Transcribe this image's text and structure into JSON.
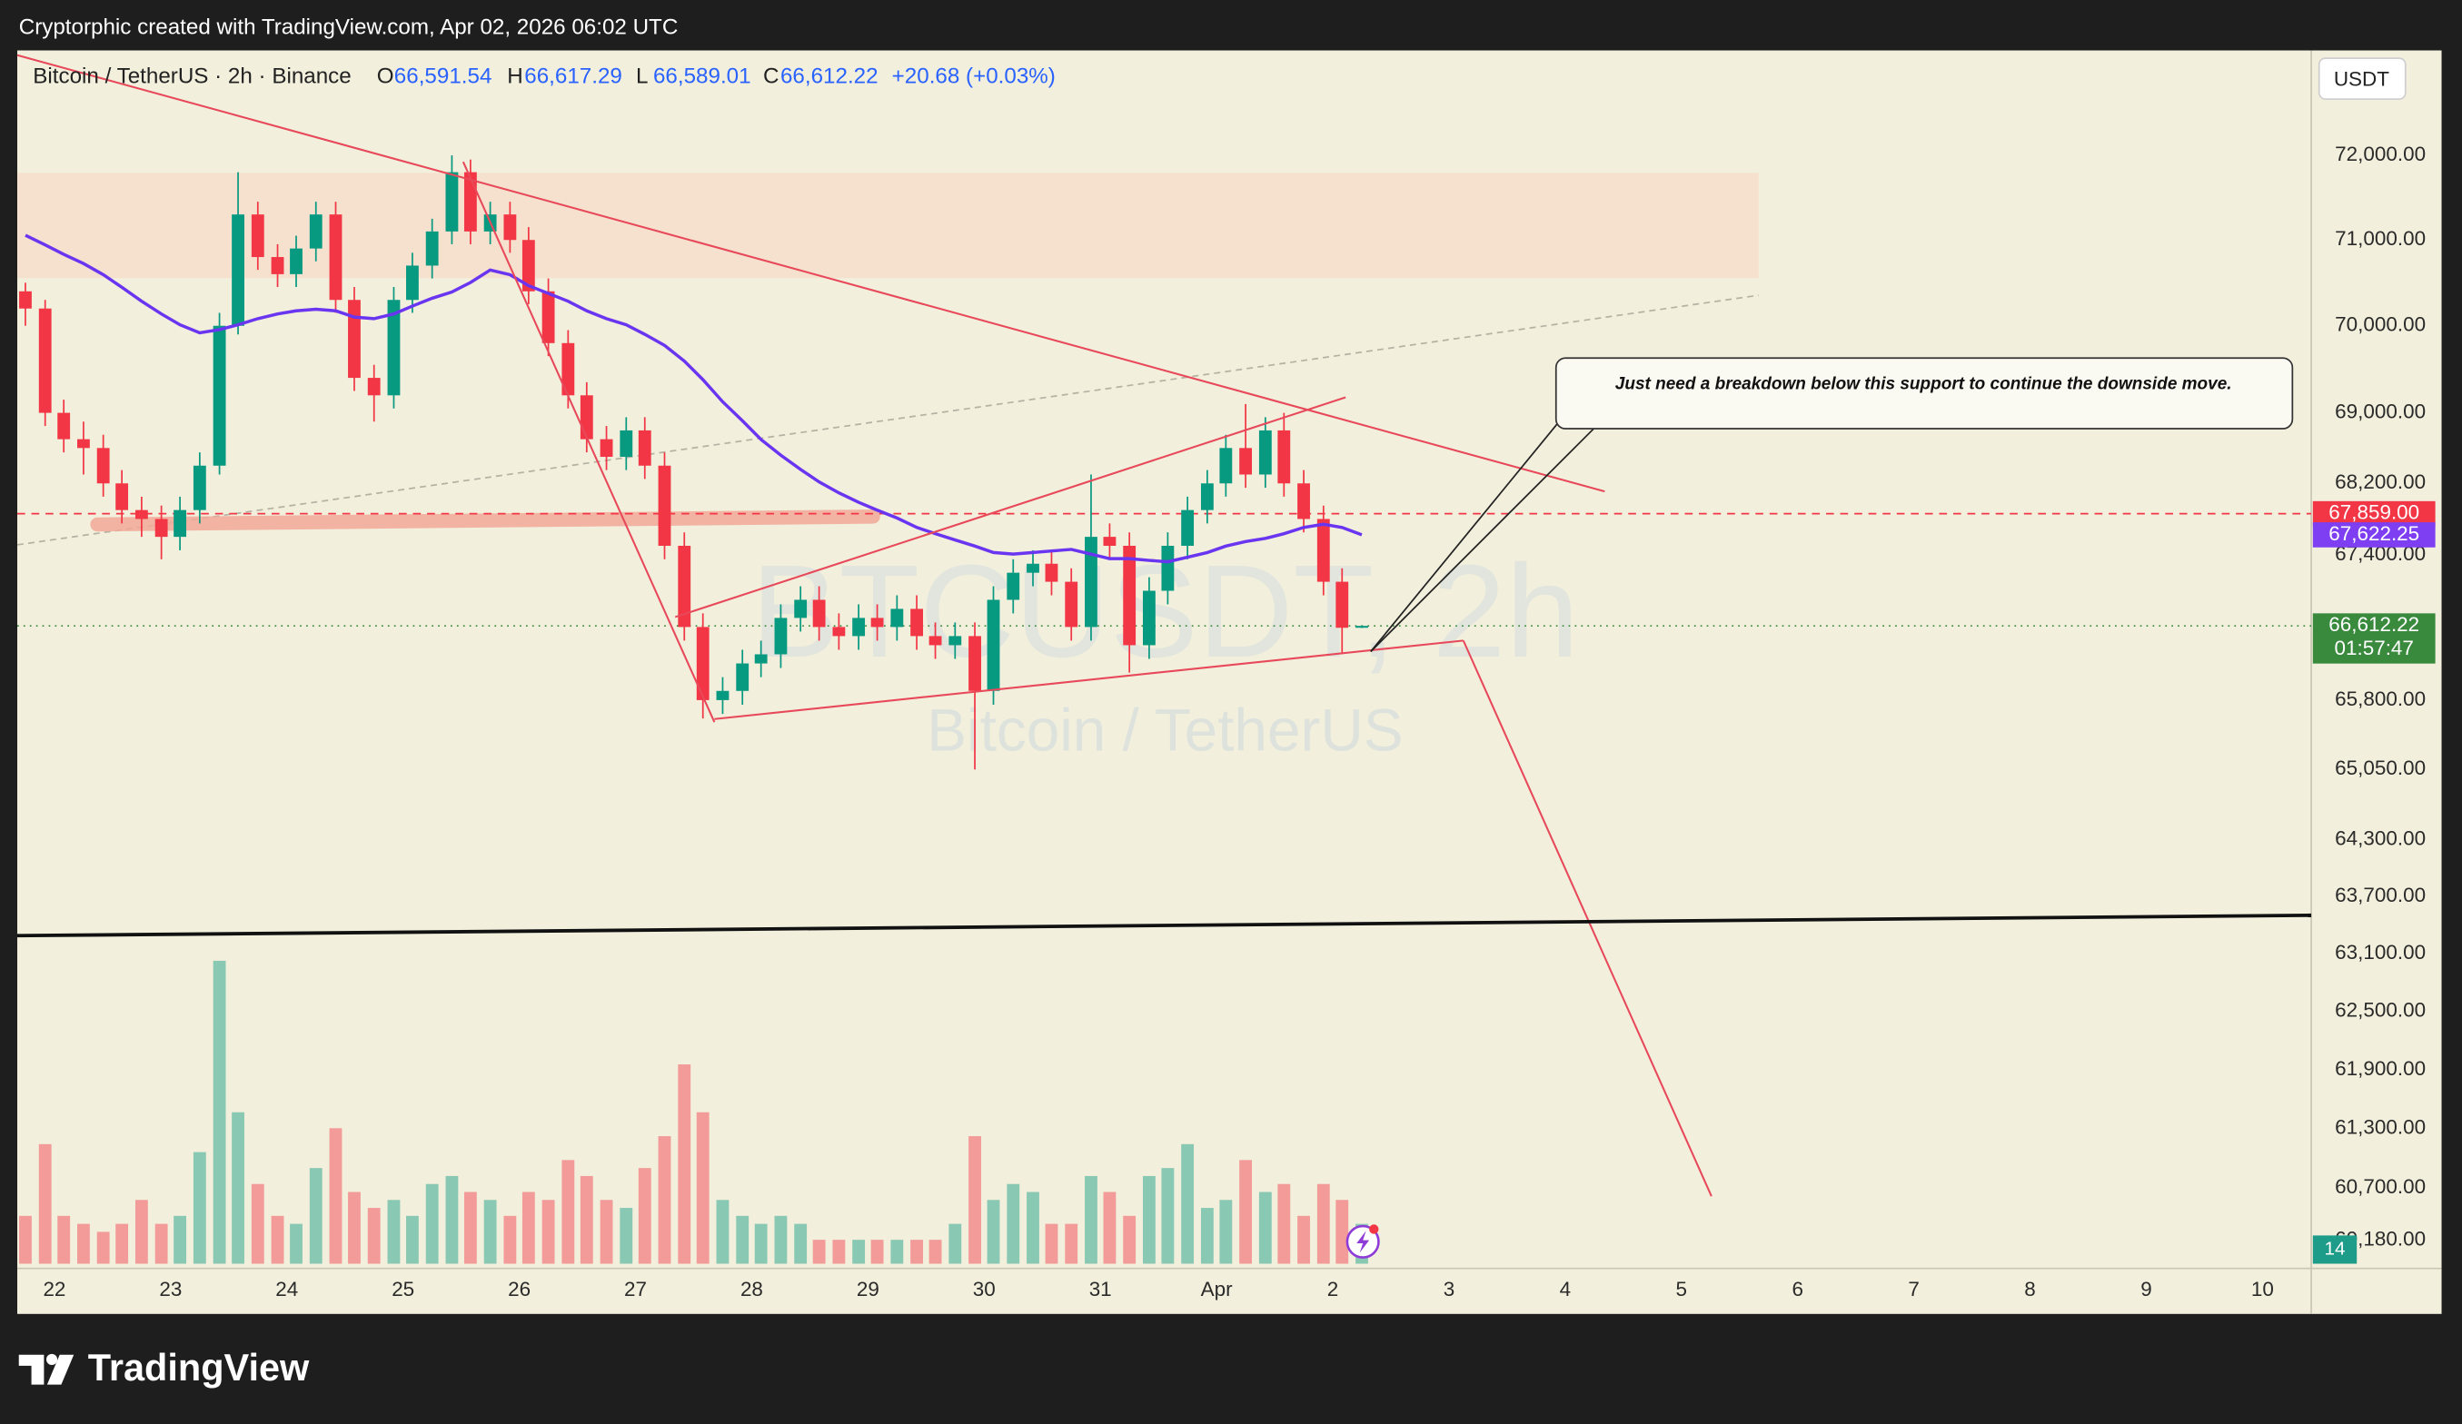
{
  "top_bar": "Cryptorphic created with TradingView.com, Apr 02, 2026 06:02 UTC",
  "footer_logo": "TradingView",
  "chart_data": {
    "type": "candlestick",
    "symbol": "Bitcoin / TetherUS · 2h · Binance",
    "ohlc_legend": [
      {
        "key": "O",
        "text": "66,591.54"
      },
      {
        "key": "H",
        "text": "66,617.29"
      },
      {
        "key": "L",
        "text": "66,589.01"
      },
      {
        "key": "C",
        "text": "66,612.22"
      }
    ],
    "change": "+20.68 (+0.03%)",
    "watermark": "BTCUSDT, 2h",
    "watermark_subtitle": "Bitcoin / TetherUS",
    "currency": "USDT",
    "countdown": "01:57:47",
    "indicator_badge": "14",
    "annotation": "Just need a breakdown below this support to continue the downside move.",
    "log_scale": true,
    "grid": false,
    "up_color": "#089981",
    "down_color": "#f23645",
    "ylim": [
      59900,
      73260
    ],
    "yticks": [
      {
        "value": 72000,
        "label": "72,000.00"
      },
      {
        "value": 71000,
        "label": "71,000.00"
      },
      {
        "value": 70000,
        "label": "70,000.00"
      },
      {
        "value": 69000,
        "label": "69,000.00"
      },
      {
        "value": 68200,
        "label": "68,200.00"
      },
      {
        "value": 67400,
        "label": "67,400.00"
      },
      {
        "value": 65800,
        "label": "65,800.00"
      },
      {
        "value": 65050,
        "label": "65,050.00"
      },
      {
        "value": 64300,
        "label": "64,300.00"
      },
      {
        "value": 63700,
        "label": "63,700.00"
      },
      {
        "value": 63100,
        "label": "63,100.00"
      },
      {
        "value": 62500,
        "label": "62,500.00"
      },
      {
        "value": 61900,
        "label": "61,900.00"
      },
      {
        "value": 61300,
        "label": "61,300.00"
      },
      {
        "value": 60700,
        "label": "60,700.00"
      },
      {
        "value": 60180,
        "label": "60,180.00"
      }
    ],
    "xlim": [
      21.68,
      41.42
    ],
    "xticks": [
      22,
      23,
      24,
      25,
      26,
      27,
      28,
      29,
      30,
      31,
      {
        "value": 32,
        "label": "Apr"
      },
      {
        "value": 33,
        "label": "2"
      },
      {
        "value": 34,
        "label": "3"
      },
      {
        "value": 35,
        "label": "4"
      },
      {
        "value": 36,
        "label": "5"
      },
      {
        "value": 37,
        "label": "6"
      },
      {
        "value": 38,
        "label": "7"
      },
      {
        "value": 39,
        "label": "8"
      },
      {
        "value": 40,
        "label": "9"
      },
      {
        "value": 41,
        "label": "10"
      }
    ],
    "price_badges": [
      {
        "value": 67859,
        "label": "67,859.00",
        "color": "#f23645"
      },
      {
        "value": 67622.25,
        "label": "67,622.25",
        "color": "#7e3ff2"
      },
      {
        "value": 66612.22,
        "label": "66,612.22",
        "color": "#3a8a3e"
      }
    ],
    "x": [
      21.75,
      21.92,
      22.08,
      22.25,
      22.42,
      22.58,
      22.75,
      22.92,
      23.08,
      23.25,
      23.42,
      23.58,
      23.75,
      23.92,
      24.08,
      24.25,
      24.42,
      24.58,
      24.75,
      24.92,
      25.08,
      25.25,
      25.42,
      25.58,
      25.75,
      25.92,
      26.08,
      26.25,
      26.42,
      26.58,
      26.75,
      26.92,
      27.08,
      27.25,
      27.42,
      27.58,
      27.75,
      27.92,
      28.08,
      28.25,
      28.42,
      28.58,
      28.75,
      28.92,
      29.08,
      29.25,
      29.42,
      29.58,
      29.75,
      29.92,
      30.08,
      30.25,
      30.42,
      30.58,
      30.75,
      30.92,
      31.08,
      31.25,
      31.42,
      31.58,
      31.75,
      31.92,
      32.08,
      32.25,
      32.42,
      32.58,
      32.75,
      32.92,
      33.08,
      33.25
    ],
    "open": [
      70400,
      70200,
      69000,
      68700,
      68600,
      68200,
      67900,
      67800,
      67600,
      67900,
      68400,
      70000,
      71300,
      70800,
      70600,
      70900,
      71300,
      70300,
      69400,
      69200,
      70300,
      70700,
      71100,
      71800,
      71100,
      71300,
      71000,
      70400,
      69800,
      69200,
      68700,
      68500,
      68800,
      68400,
      67500,
      66600,
      65800,
      65900,
      66200,
      66300,
      66700,
      66900,
      66600,
      66500,
      66700,
      66600,
      66800,
      66500,
      66400,
      66500,
      65900,
      66900,
      67200,
      67300,
      67100,
      66600,
      67600,
      67500,
      66400,
      67000,
      67500,
      67900,
      68200,
      68600,
      68300,
      68800,
      68200,
      67800,
      67100,
      66591.54
    ],
    "high": [
      70500,
      70300,
      69150,
      68900,
      68750,
      68350,
      68050,
      67950,
      68050,
      68550,
      70150,
      71800,
      71450,
      70950,
      71050,
      71450,
      71450,
      70450,
      69550,
      70450,
      70850,
      71250,
      72000,
      71950,
      71450,
      71450,
      71150,
      70550,
      69950,
      69350,
      68850,
      68950,
      68950,
      68550,
      67650,
      66750,
      66050,
      66350,
      66450,
      66850,
      67050,
      67050,
      66750,
      66850,
      66850,
      66950,
      66950,
      66650,
      66650,
      66650,
      67050,
      67350,
      67450,
      67450,
      67250,
      68300,
      67750,
      67650,
      67150,
      67650,
      68050,
      68350,
      68750,
      69100,
      68950,
      69000,
      68350,
      67950,
      67250,
      66617.29
    ],
    "low": [
      70000,
      68850,
      68550,
      68300,
      68050,
      67750,
      67600,
      67350,
      67450,
      67750,
      68300,
      69900,
      70650,
      70450,
      70450,
      70750,
      70150,
      69250,
      68900,
      69050,
      70150,
      70550,
      70950,
      70950,
      70950,
      70850,
      70250,
      69650,
      69050,
      68550,
      68350,
      68350,
      68250,
      67350,
      66450,
      65600,
      65650,
      65750,
      66050,
      66150,
      66550,
      66450,
      66350,
      66350,
      66450,
      66450,
      66350,
      66250,
      66250,
      65050,
      65750,
      66750,
      67050,
      66950,
      66450,
      66450,
      67350,
      66100,
      66250,
      66850,
      67350,
      67750,
      68050,
      68150,
      68150,
      68050,
      67650,
      66950,
      66300,
      66589.01
    ],
    "close": [
      70200,
      69000,
      68700,
      68600,
      68200,
      67900,
      67800,
      67600,
      67900,
      68400,
      70000,
      71300,
      70800,
      70600,
      70900,
      71300,
      70300,
      69400,
      69200,
      70300,
      70700,
      71100,
      71800,
      71100,
      71300,
      71000,
      70400,
      69800,
      69200,
      68700,
      68500,
      68800,
      68400,
      67500,
      66600,
      65800,
      65900,
      66200,
      66300,
      66700,
      66900,
      66600,
      66500,
      66700,
      66600,
      66800,
      66500,
      66400,
      66500,
      65900,
      66900,
      67200,
      67300,
      67100,
      66600,
      67600,
      67500,
      66400,
      67000,
      67500,
      67900,
      68200,
      68600,
      68300,
      68800,
      68200,
      67800,
      67100,
      66591.54,
      66612.22
    ],
    "volume": [
      30,
      75,
      30,
      25,
      20,
      25,
      40,
      25,
      30,
      70,
      190,
      95,
      50,
      30,
      25,
      60,
      85,
      45,
      35,
      40,
      30,
      50,
      55,
      45,
      40,
      30,
      45,
      40,
      65,
      55,
      40,
      35,
      60,
      80,
      125,
      95,
      40,
      30,
      25,
      30,
      25,
      15,
      15,
      15,
      15,
      15,
      15,
      15,
      25,
      80,
      40,
      50,
      45,
      25,
      25,
      55,
      45,
      30,
      55,
      60,
      75,
      35,
      40,
      65,
      45,
      50,
      30,
      50,
      40,
      25
    ],
    "ma": {
      "color": "#6a35f0",
      "values": [
        71054,
        70943,
        70832,
        70723,
        70594,
        70448,
        70284,
        70137,
        70011,
        69919,
        69956,
        70011,
        70083,
        70137,
        70174,
        70192,
        70174,
        70101,
        70083,
        70137,
        70229,
        70320,
        70393,
        70502,
        70649,
        70594,
        70466,
        70375,
        70284,
        70174,
        70083,
        70011,
        69901,
        69774,
        69594,
        69378,
        69126,
        68911,
        68697,
        68519,
        68359,
        68217,
        68093,
        67987,
        67899,
        67811,
        67705,
        67636,
        67565,
        67496,
        67425,
        67408,
        67425,
        67443,
        67460,
        67408,
        67356,
        67356,
        67338,
        67321,
        67373,
        67425,
        67496,
        67548,
        67583,
        67636,
        67705,
        67740,
        67705,
        67622.25
      ]
    }
  }
}
